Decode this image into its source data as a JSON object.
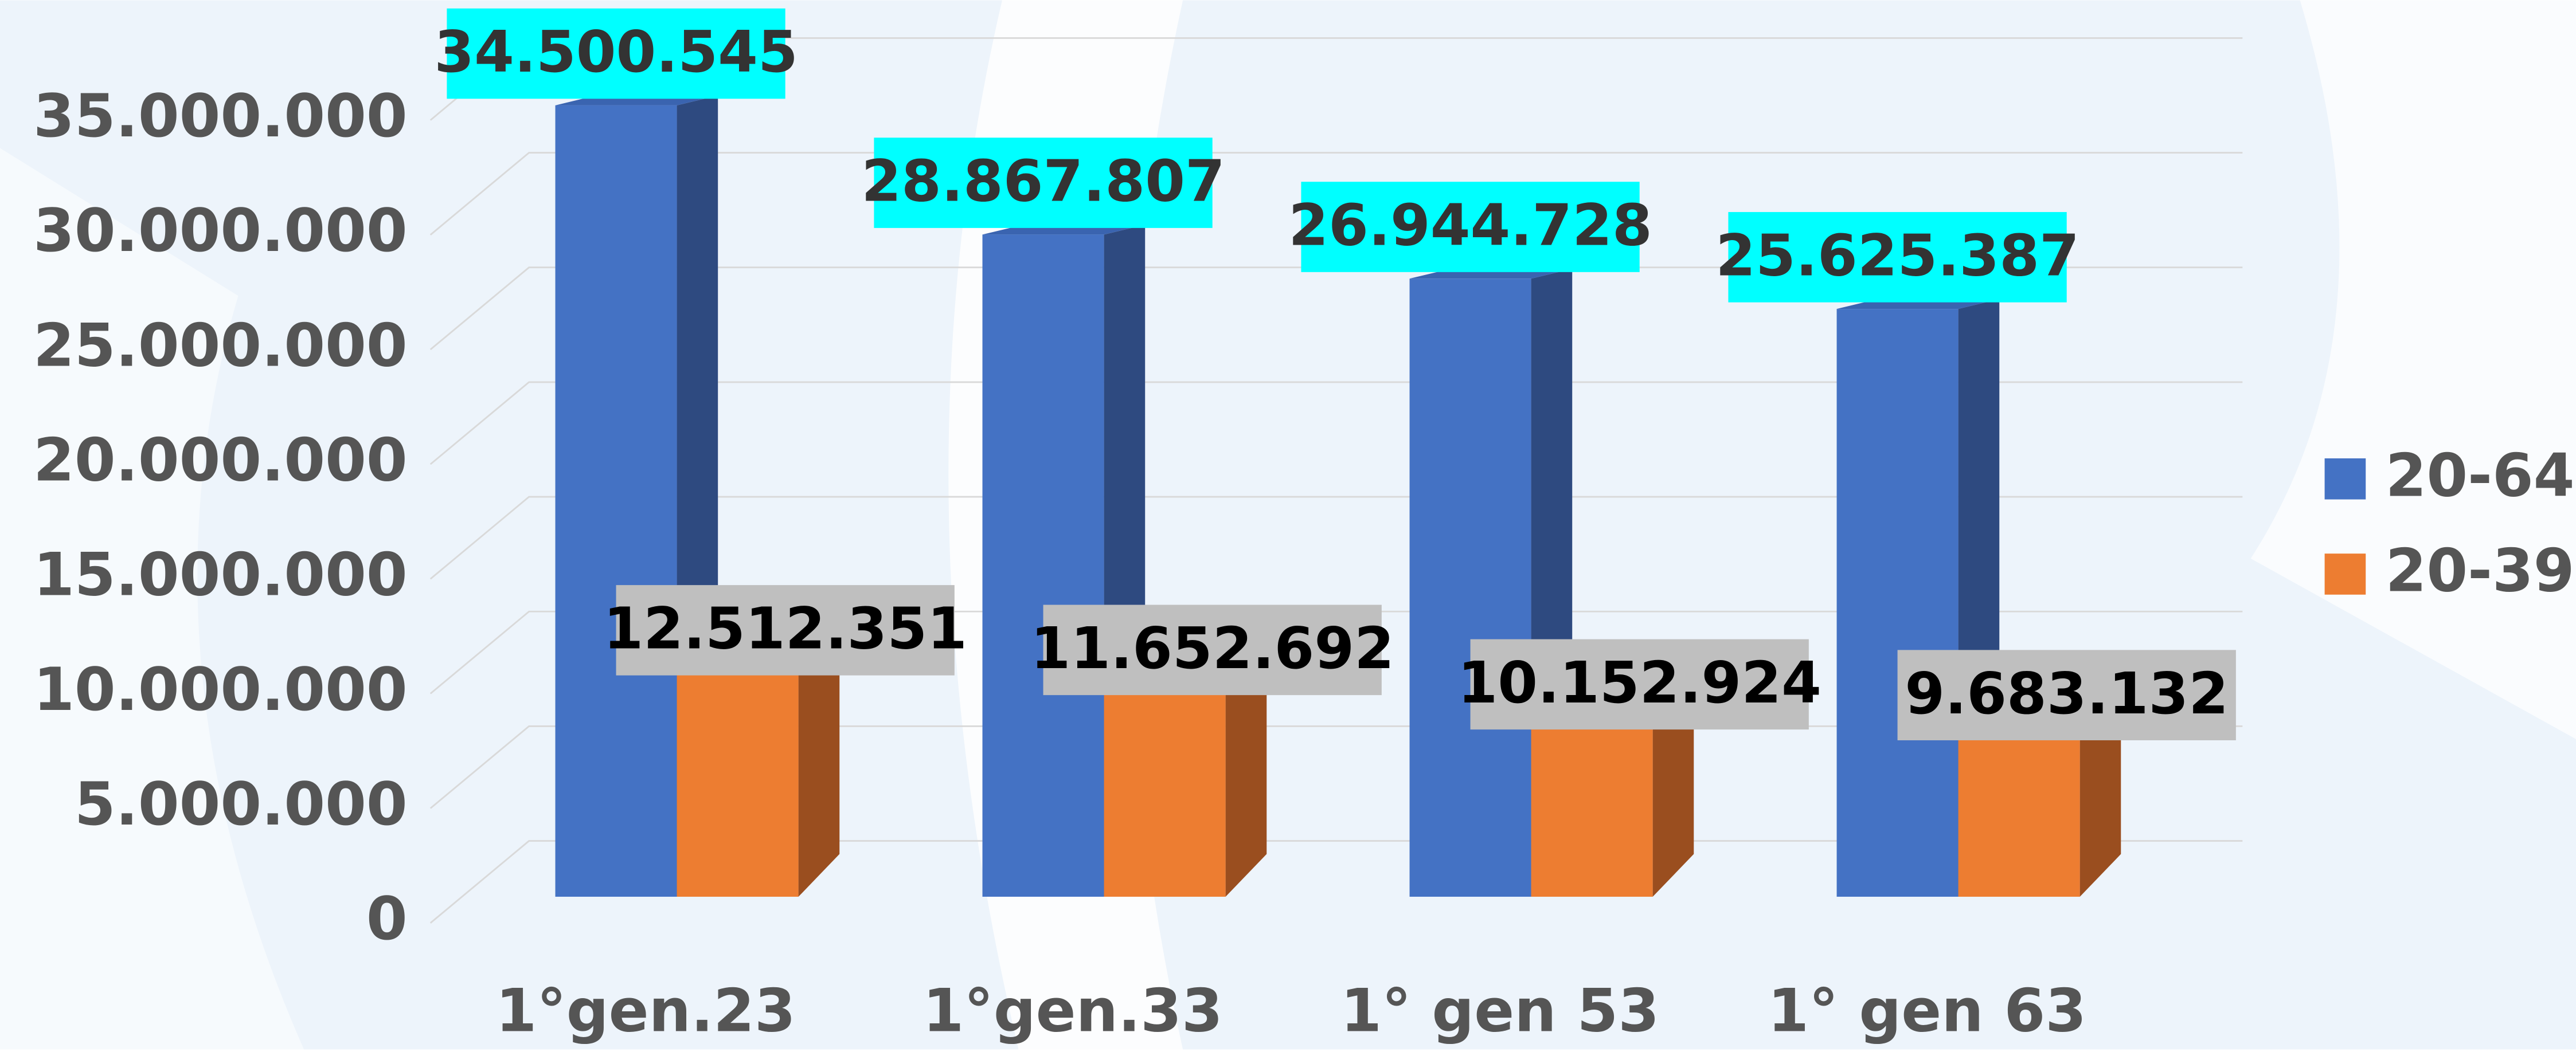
{
  "chart_data": {
    "type": "bar3d",
    "categories": [
      "1°gen.23",
      "1°gen.33",
      "1° gen 53",
      "1° gen 63"
    ],
    "series": [
      {
        "name": "20-64",
        "color": "#4472c4",
        "side_color": "#2e4a80",
        "top_color": "#3a64b0",
        "values": [
          34500545,
          28867807,
          26944728,
          25625387
        ],
        "value_labels": [
          "34.500.545",
          "28.867.807",
          "26.944.728",
          "25.625.387"
        ],
        "label_background": "#00ffff"
      },
      {
        "name": "20-39",
        "color": "#ed7d31",
        "side_color": "#9a4e1f",
        "top_color": "#c9682a",
        "values": [
          12512351,
          11652692,
          10152924,
          9683132
        ],
        "value_labels": [
          "12.512.351",
          "11.652.692",
          "10.152.924",
          "9.683.132"
        ],
        "label_background": "#bfbfbf"
      }
    ],
    "ylim": [
      0,
      35000000
    ],
    "yticks": [
      0,
      {
        "value": 5000000,
        "label": "5.000.000"
      },
      {
        "value": 10000000,
        "label": "10.000.000"
      },
      {
        "value": 15000000,
        "label": "15.000.000"
      },
      {
        "value": 20000000,
        "label": "20.000.000"
      },
      {
        "value": 25000000,
        "label": "25.000.000"
      },
      {
        "value": 30000000,
        "label": "30.000.000"
      },
      {
        "value": 35000000,
        "label": "35.000.000"
      }
    ],
    "grid": true,
    "legend": "right"
  }
}
